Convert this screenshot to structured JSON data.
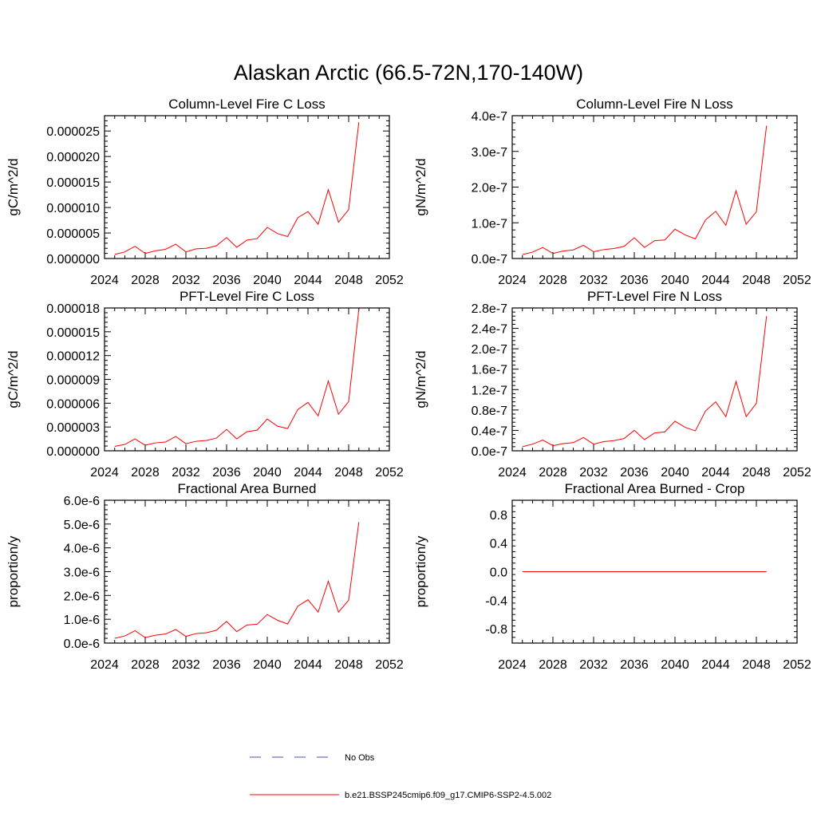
{
  "figure": {
    "title": "Alaskan Arctic (66.5-72N,170-140W)"
  },
  "legend": [
    {
      "label": "No Obs",
      "color": "#4455aa",
      "style": "dashed"
    },
    {
      "label": "b.e21.BSSP245cmip6.f09_g17.CMIP6-SSP2-4.5.002",
      "color": "#ff0000",
      "style": "solid"
    }
  ],
  "chart_data": [
    {
      "type": "line",
      "title": "Column-Level Fire C Loss",
      "ylabel": "gC/m^2/d",
      "xlim": [
        2024,
        2052
      ],
      "ylim": [
        0,
        2.8e-05
      ],
      "xticks": [
        2024,
        2028,
        2032,
        2036,
        2040,
        2044,
        2048,
        2052
      ],
      "yticks": [
        0,
        5e-06,
        1e-05,
        1.5e-05,
        2e-05,
        2.5e-05
      ],
      "ytick_labels": [
        "0.000000",
        "0.000005",
        "0.000010",
        "0.000015",
        "0.000020",
        "0.000025"
      ],
      "series": [
        {
          "color": "#ff0000",
          "x": [
            2025,
            2026,
            2027,
            2028,
            2029,
            2030,
            2031,
            2032,
            2033,
            2034,
            2035,
            2036,
            2037,
            2038,
            2039,
            2040,
            2041,
            2042,
            2043,
            2044,
            2045,
            2046,
            2047,
            2048,
            2049
          ],
          "y": [
            8e-07,
            1.3e-06,
            2.4e-06,
            1e-06,
            1.5e-06,
            1.8e-06,
            2.8e-06,
            1.3e-06,
            1.9e-06,
            2e-06,
            2.5e-06,
            4.1e-06,
            2.2e-06,
            3.6e-06,
            3.9e-06,
            6.1e-06,
            4.9e-06,
            4.3e-06,
            8e-06,
            9.2e-06,
            6.7e-06,
            1.35e-05,
            7.1e-06,
            9.6e-06,
            2.67e-05
          ]
        }
      ]
    },
    {
      "type": "line",
      "title": "Column-Level Fire N Loss",
      "ylabel": "gN/m^2/d",
      "xlim": [
        2024,
        2052
      ],
      "ylim": [
        0,
        4e-07
      ],
      "xticks": [
        2024,
        2028,
        2032,
        2036,
        2040,
        2044,
        2048,
        2052
      ],
      "yticks": [
        0,
        1e-07,
        2e-07,
        3e-07,
        4e-07
      ],
      "ytick_labels": [
        "0.0e-7",
        "1.0e-7",
        "2.0e-7",
        "3.0e-7",
        "4.0e-7"
      ],
      "series": [
        {
          "color": "#ff0000",
          "x": [
            2025,
            2026,
            2027,
            2028,
            2029,
            2030,
            2031,
            2032,
            2033,
            2034,
            2035,
            2036,
            2037,
            2038,
            2039,
            2040,
            2041,
            2042,
            2043,
            2044,
            2045,
            2046,
            2047,
            2048,
            2049
          ],
          "y": [
            1.1e-08,
            1.8e-08,
            3.1e-08,
            1.4e-08,
            2.1e-08,
            2.4e-08,
            3.7e-08,
            1.9e-08,
            2.5e-08,
            2.8e-08,
            3.4e-08,
            5.8e-08,
            3.1e-08,
            5e-08,
            5.2e-08,
            8.2e-08,
            6.6e-08,
            5.5e-08,
            1.08e-07,
            1.32e-07,
            9.3e-08,
            1.9e-07,
            9.6e-08,
            1.31e-07,
            3.72e-07
          ]
        }
      ]
    },
    {
      "type": "line",
      "title": "PFT-Level Fire C Loss",
      "ylabel": "gC/m^2/d",
      "xlim": [
        2024,
        2052
      ],
      "ylim": [
        0,
        1.8e-05
      ],
      "xticks": [
        2024,
        2028,
        2032,
        2036,
        2040,
        2044,
        2048,
        2052
      ],
      "yticks": [
        0,
        3e-06,
        6e-06,
        9e-06,
        1.2e-05,
        1.5e-05,
        1.8e-05
      ],
      "ytick_labels": [
        "0.000000",
        "0.000003",
        "0.000006",
        "0.000009",
        "0.000012",
        "0.000015",
        "0.000018"
      ],
      "series": [
        {
          "color": "#ff0000",
          "x": [
            2025,
            2026,
            2027,
            2028,
            2029,
            2030,
            2031,
            2032,
            2033,
            2034,
            2035,
            2036,
            2037,
            2038,
            2039,
            2040,
            2041,
            2042,
            2043,
            2044,
            2045,
            2046,
            2047,
            2048,
            2049
          ],
          "y": [
            5.5e-07,
            8e-07,
            1.5e-06,
            7e-07,
            1e-06,
            1.1e-06,
            1.8e-06,
            9e-07,
            1.2e-06,
            1.3e-06,
            1.6e-06,
            2.7e-06,
            1.5e-06,
            2.4e-06,
            2.6e-06,
            4e-06,
            3.1e-06,
            2.8e-06,
            5.2e-06,
            6.1e-06,
            4.4e-06,
            8.8e-06,
            4.6e-06,
            6.2e-06,
            1.78e-05
          ]
        }
      ]
    },
    {
      "type": "line",
      "title": "PFT-Level Fire N Loss",
      "ylabel": "gN/m^2/d",
      "xlim": [
        2024,
        2052
      ],
      "ylim": [
        0,
        2.8e-07
      ],
      "xticks": [
        2024,
        2028,
        2032,
        2036,
        2040,
        2044,
        2048,
        2052
      ],
      "yticks": [
        0,
        4e-08,
        8e-08,
        1.2e-07,
        1.6e-07,
        2e-07,
        2.4e-07,
        2.8e-07
      ],
      "ytick_labels": [
        "0.0e-7",
        "0.4e-7",
        "0.8e-7",
        "1.2e-7",
        "1.6e-7",
        "2.0e-7",
        "2.4e-7",
        "2.8e-7"
      ],
      "series": [
        {
          "color": "#ff0000",
          "x": [
            2025,
            2026,
            2027,
            2028,
            2029,
            2030,
            2031,
            2032,
            2033,
            2034,
            2035,
            2036,
            2037,
            2038,
            2039,
            2040,
            2041,
            2042,
            2043,
            2044,
            2045,
            2046,
            2047,
            2048,
            2049
          ],
          "y": [
            8e-09,
            1.3e-08,
            2.1e-08,
            1e-08,
            1.4e-08,
            1.6e-08,
            2.6e-08,
            1.3e-08,
            1.8e-08,
            2e-08,
            2.4e-08,
            4e-08,
            2.2e-08,
            3.5e-08,
            3.7e-08,
            5.8e-08,
            4.6e-08,
            3.9e-08,
            7.8e-08,
            9.6e-08,
            6.7e-08,
            1.36e-07,
            6.7e-08,
            9.3e-08,
            2.64e-07
          ]
        }
      ]
    },
    {
      "type": "line",
      "title": "Fractional Area Burned",
      "ylabel": "proportion/y",
      "xlim": [
        2024,
        2052
      ],
      "ylim": [
        0,
        6e-06
      ],
      "xticks": [
        2024,
        2028,
        2032,
        2036,
        2040,
        2044,
        2048,
        2052
      ],
      "yticks": [
        0,
        1e-06,
        2e-06,
        3e-06,
        4e-06,
        5e-06,
        6e-06
      ],
      "ytick_labels": [
        "0.0e-6",
        "1.0e-6",
        "2.0e-6",
        "3.0e-6",
        "4.0e-6",
        "5.0e-6",
        "6.0e-6"
      ],
      "series": [
        {
          "color": "#ff0000",
          "x": [
            2025,
            2026,
            2027,
            2028,
            2029,
            2030,
            2031,
            2032,
            2033,
            2034,
            2035,
            2036,
            2037,
            2038,
            2039,
            2040,
            2041,
            2042,
            2043,
            2044,
            2045,
            2046,
            2047,
            2048,
            2049
          ],
          "y": [
            2e-07,
            3e-07,
            5.2e-07,
            2.3e-07,
            3.3e-07,
            3.8e-07,
            5.7e-07,
            2.8e-07,
            4e-07,
            4.3e-07,
            5.4e-07,
            9.1e-07,
            4.8e-07,
            7.6e-07,
            7.9e-07,
            1.2e-06,
            9.6e-07,
            8e-07,
            1.55e-06,
            1.82e-06,
            1.3e-06,
            2.6e-06,
            1.3e-06,
            1.8e-06,
            5.08e-06
          ]
        }
      ]
    },
    {
      "type": "line",
      "title": "Fractional Area Burned - Crop",
      "ylabel": "proportion/y",
      "xlim": [
        2024,
        2052
      ],
      "ylim": [
        -1.0,
        1.0
      ],
      "xticks": [
        2024,
        2028,
        2032,
        2036,
        2040,
        2044,
        2048,
        2052
      ],
      "yticks": [
        -0.8,
        -0.4,
        0,
        0.4,
        0.8
      ],
      "ytick_labels": [
        "-0.8",
        "-0.4",
        "0.0",
        "0.4",
        "0.8"
      ],
      "series": [
        {
          "color": "#ff0000",
          "x": [
            2025,
            2026,
            2027,
            2028,
            2029,
            2030,
            2031,
            2032,
            2033,
            2034,
            2035,
            2036,
            2037,
            2038,
            2039,
            2040,
            2041,
            2042,
            2043,
            2044,
            2045,
            2046,
            2047,
            2048,
            2049
          ],
          "y": [
            0,
            0,
            0,
            0,
            0,
            0,
            0,
            0,
            0,
            0,
            0,
            0,
            0,
            0,
            0,
            0,
            0,
            0,
            0,
            0,
            0,
            0,
            0,
            0,
            0
          ]
        }
      ]
    }
  ]
}
